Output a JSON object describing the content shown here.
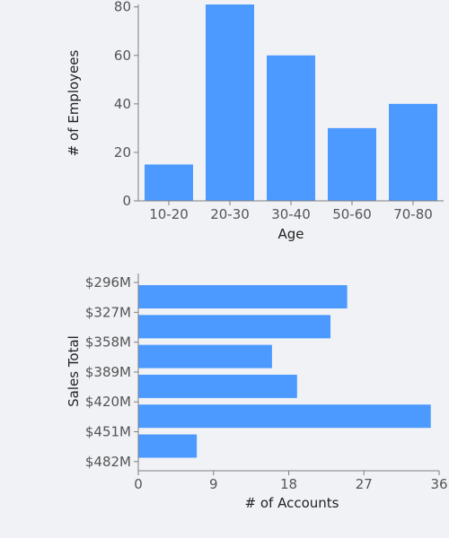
{
  "colors": {
    "background": "#f0f2f6",
    "bar": "#4c9aff",
    "axis": "#7f7f7f",
    "tick_text": "#555555",
    "title_text": "#222222"
  },
  "chart_data": [
    {
      "type": "bar",
      "orientation": "vertical",
      "categories": [
        "10-20",
        "20-30",
        "30-40",
        "50-60",
        "70-80"
      ],
      "values": [
        15,
        81,
        60,
        30,
        40
      ],
      "xlabel": "Age",
      "ylabel": "# of Employees",
      "ylim": [
        0,
        81
      ],
      "yticks": [
        "0",
        "20",
        "40",
        "60",
        "80"
      ],
      "ytick_values": [
        0,
        20,
        40,
        60,
        80
      ],
      "grid": false,
      "legend": "none"
    },
    {
      "type": "bar",
      "orientation": "horizontal",
      "categories": [
        "$296M",
        "$327M",
        "$358M",
        "$389M",
        "$420M",
        "$451M",
        "$482M"
      ],
      "values": [
        25,
        23,
        16,
        19,
        35,
        7,
        0
      ],
      "xlabel": "# of Accounts",
      "ylabel": "Sales Total",
      "xlim": [
        0,
        36
      ],
      "xticks": [
        "0",
        "9",
        "18",
        "27",
        "36"
      ],
      "xtick_values": [
        0,
        9,
        18,
        27,
        36
      ],
      "grid": false,
      "legend": "none"
    }
  ]
}
